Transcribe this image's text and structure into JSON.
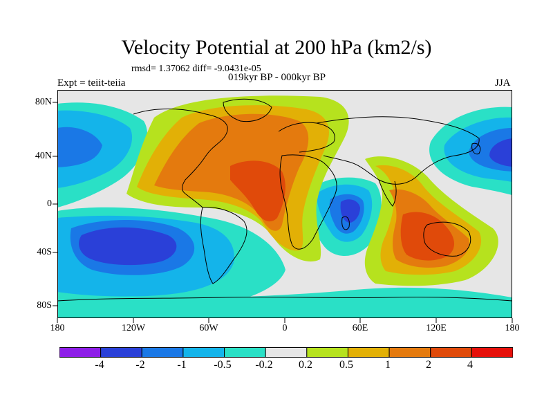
{
  "title": "Velocity Potential at 200 hPa (km2/s)",
  "stats_line": "rmsd= 1.37062 diff= -9.0431e-05",
  "experiment_label": "Expt = teiit-teiia",
  "period_label": "019kyr BP - 000kyr BP",
  "season_label": "JJA",
  "y_axis_ticks": [
    "80N",
    "40N",
    "0",
    "40S",
    "80S"
  ],
  "x_axis_ticks": [
    "180",
    "120W",
    "60W",
    "0",
    "60E",
    "120E",
    "180"
  ],
  "colorbar": {
    "tick_labels": [
      "-4",
      "-2",
      "-1",
      "-0.5",
      "-0.2",
      "0.2",
      "0.5",
      "1",
      "2",
      "4"
    ],
    "colors": [
      "#8e1ee8",
      "#2a40d8",
      "#1a78e6",
      "#14b4ea",
      "#2ae0c6",
      "#e6e6e6",
      "#b6e21e",
      "#e2b006",
      "#e47a0e",
      "#e04a0a",
      "#e6100a"
    ]
  },
  "colors": {
    "background_neutral": "#e6e6e6",
    "coastline": "#000000"
  }
}
